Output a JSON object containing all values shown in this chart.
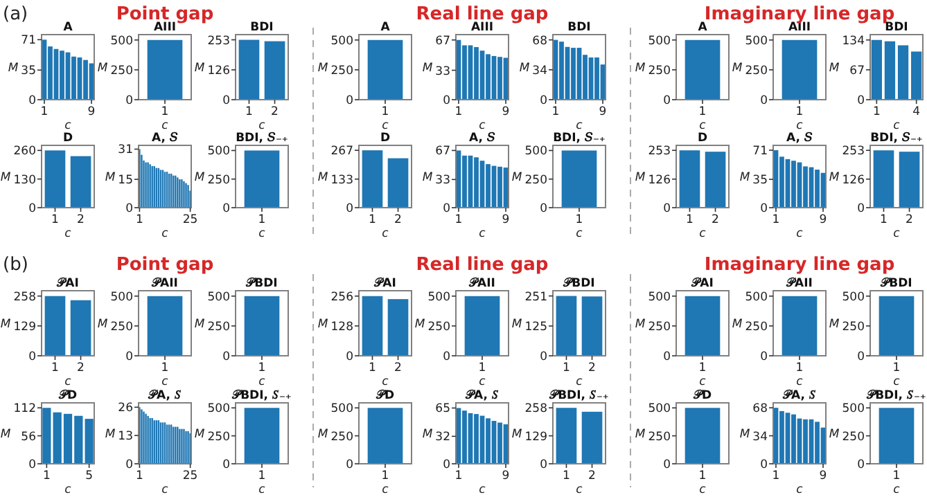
{
  "chart_data": [
    {
      "type": "bar",
      "title": "A",
      "xlabel": "c",
      "ylabel": "M",
      "annotations": [
        "(a)"
      ],
      "categories": [
        "1",
        null,
        null,
        null,
        null,
        null,
        null,
        null,
        "9"
      ],
      "values": [
        71,
        63,
        60,
        58,
        56,
        51,
        50,
        47,
        43
      ],
      "color": "#1f77b4",
      "ylim": [
        0,
        77
      ],
      "yticks": [
        0,
        35,
        71
      ]
    },
    {
      "type": "bar",
      "title": "AIII",
      "xlabel": "c",
      "ylabel": "M",
      "annotations": [
        "Point gap"
      ],
      "categories": [
        "1"
      ],
      "values": [
        500
      ],
      "color": "#1f77b4",
      "ylim": [
        0,
        545
      ],
      "yticks": [
        0,
        250,
        500
      ]
    },
    {
      "type": "bar",
      "title": "BDI",
      "xlabel": "c",
      "ylabel": "M",
      "categories": [
        "1",
        "2"
      ],
      "values": [
        253,
        247
      ],
      "color": "#1f77b4",
      "ylim": [
        0,
        275
      ],
      "yticks": [
        0,
        126,
        253
      ]
    },
    {
      "type": "bar",
      "title": "A",
      "xlabel": "c",
      "ylabel": "M",
      "categories": [
        "1"
      ],
      "values": [
        500
      ],
      "color": "#1f77b4",
      "ylim": [
        0,
        545
      ],
      "yticks": [
        0,
        250,
        500
      ]
    },
    {
      "type": "bar",
      "title": "AIII",
      "xlabel": "c",
      "ylabel": "M",
      "annotations": [
        "Real line gap"
      ],
      "categories": [
        "1",
        null,
        null,
        null,
        null,
        null,
        null,
        null,
        "9"
      ],
      "values": [
        67,
        61,
        61,
        59,
        55,
        51,
        49,
        48,
        47
      ],
      "color": "#1f77b4",
      "ylim": [
        0,
        73
      ],
      "yticks": [
        0,
        33,
        67
      ]
    },
    {
      "type": "bar",
      "title": "BDI",
      "xlabel": "c",
      "ylabel": "M",
      "categories": [
        "1",
        null,
        null,
        null,
        null,
        null,
        null,
        null,
        "9"
      ],
      "values": [
        68,
        66,
        60,
        59,
        59,
        51,
        48,
        48,
        40
      ],
      "color": "#1f77b4",
      "ylim": [
        0,
        74
      ],
      "yticks": [
        0,
        34,
        68
      ]
    },
    {
      "type": "bar",
      "title": "A",
      "xlabel": "c",
      "ylabel": "M",
      "categories": [
        "1"
      ],
      "values": [
        500
      ],
      "color": "#1f77b4",
      "ylim": [
        0,
        545
      ],
      "yticks": [
        0,
        250,
        500
      ]
    },
    {
      "type": "bar",
      "title": "AIII",
      "xlabel": "c",
      "ylabel": "M",
      "annotations": [
        "Imaginary line gap"
      ],
      "categories": [
        "1"
      ],
      "values": [
        500
      ],
      "color": "#1f77b4",
      "ylim": [
        0,
        545
      ],
      "yticks": [
        0,
        250,
        500
      ]
    },
    {
      "type": "bar",
      "title": "BDI",
      "xlabel": "c",
      "ylabel": "M",
      "categories": [
        "1",
        null,
        null,
        "4"
      ],
      "values": [
        134,
        131,
        122,
        108
      ],
      "color": "#1f77b4",
      "ylim": [
        0,
        146
      ],
      "yticks": [
        0,
        67,
        134
      ]
    },
    {
      "type": "bar",
      "title": "D",
      "xlabel": "c",
      "ylabel": "M",
      "categories": [
        "1",
        "2"
      ],
      "values": [
        260,
        234
      ],
      "color": "#1f77b4",
      "ylim": [
        0,
        283
      ],
      "yticks": [
        0,
        130,
        260
      ]
    },
    {
      "type": "bar",
      "title": "A, 𝑆",
      "xlabel": "c",
      "ylabel": "M",
      "categories": [
        "1",
        null,
        null,
        null,
        null,
        null,
        null,
        null,
        null,
        null,
        null,
        null,
        null,
        null,
        null,
        null,
        null,
        null,
        null,
        null,
        null,
        null,
        null,
        null,
        "25"
      ],
      "values": [
        31,
        28,
        25,
        24,
        24,
        23,
        22,
        22,
        21,
        21,
        20,
        20,
        19,
        19,
        18,
        18,
        17,
        17,
        16,
        15,
        15,
        14,
        13,
        12,
        9
      ],
      "color": "#1f77b4",
      "ylim": [
        0,
        33
      ],
      "yticks": [
        0,
        15,
        31
      ]
    },
    {
      "type": "bar",
      "title": "BDI, 𝑆₋₊",
      "xlabel": "c",
      "ylabel": "M",
      "categories": [
        "1"
      ],
      "values": [
        500
      ],
      "color": "#1f77b4",
      "ylim": [
        0,
        545
      ],
      "yticks": [
        0,
        250,
        500
      ]
    },
    {
      "type": "bar",
      "title": "D",
      "xlabel": "c",
      "ylabel": "M",
      "categories": [
        "1",
        "2"
      ],
      "values": [
        267,
        230
      ],
      "color": "#1f77b4",
      "ylim": [
        0,
        290
      ],
      "yticks": [
        0,
        133,
        267
      ]
    },
    {
      "type": "bar",
      "title": "A, 𝑆",
      "xlabel": "c",
      "ylabel": "M",
      "categories": [
        "1",
        null,
        null,
        null,
        null,
        null,
        null,
        null,
        "9"
      ],
      "values": [
        67,
        61,
        61,
        59,
        55,
        51,
        49,
        48,
        47
      ],
      "color": "#1f77b4",
      "ylim": [
        0,
        73
      ],
      "yticks": [
        0,
        33,
        67
      ]
    },
    {
      "type": "bar",
      "title": "BDI, 𝑆₋₊",
      "xlabel": "c",
      "ylabel": "M",
      "categories": [
        "1"
      ],
      "values": [
        500
      ],
      "color": "#1f77b4",
      "ylim": [
        0,
        545
      ],
      "yticks": [
        0,
        250,
        500
      ]
    },
    {
      "type": "bar",
      "title": "D",
      "xlabel": "c",
      "ylabel": "M",
      "categories": [
        "1",
        "2"
      ],
      "values": [
        253,
        247
      ],
      "color": "#1f77b4",
      "ylim": [
        0,
        275
      ],
      "yticks": [
        0,
        126,
        253
      ]
    },
    {
      "type": "bar",
      "title": "A, 𝑆",
      "xlabel": "c",
      "ylabel": "M",
      "categories": [
        "1",
        null,
        null,
        null,
        null,
        null,
        null,
        null,
        "9"
      ],
      "values": [
        71,
        63,
        60,
        58,
        56,
        51,
        50,
        47,
        43
      ],
      "color": "#1f77b4",
      "ylim": [
        0,
        77
      ],
      "yticks": [
        0,
        35,
        71
      ]
    },
    {
      "type": "bar",
      "title": "BDI, 𝑆₋₊",
      "xlabel": "c",
      "ylabel": "M",
      "categories": [
        "1",
        "2"
      ],
      "values": [
        253,
        247
      ],
      "color": "#1f77b4",
      "ylim": [
        0,
        275
      ],
      "yticks": [
        0,
        126,
        253
      ]
    },
    {
      "type": "bar",
      "title": "𝒫AI",
      "xlabel": "c",
      "ylabel": "M",
      "annotations": [
        "(b)"
      ],
      "categories": [
        "1",
        "2"
      ],
      "values": [
        258,
        240
      ],
      "color": "#1f77b4",
      "ylim": [
        0,
        281
      ],
      "yticks": [
        0,
        129,
        258
      ]
    },
    {
      "type": "bar",
      "title": "𝒫AII",
      "xlabel": "c",
      "ylabel": "M",
      "annotations": [
        "Point gap"
      ],
      "categories": [
        "1"
      ],
      "values": [
        500
      ],
      "color": "#1f77b4",
      "ylim": [
        0,
        545
      ],
      "yticks": [
        0,
        250,
        500
      ]
    },
    {
      "type": "bar",
      "title": "𝒫BDI",
      "xlabel": "c",
      "ylabel": "M",
      "categories": [
        "1"
      ],
      "values": [
        500
      ],
      "color": "#1f77b4",
      "ylim": [
        0,
        545
      ],
      "yticks": [
        0,
        250,
        500
      ]
    },
    {
      "type": "bar",
      "title": "𝒫AI",
      "xlabel": "c",
      "ylabel": "M",
      "categories": [
        "1",
        "2"
      ],
      "values": [
        256,
        243
      ],
      "color": "#1f77b4",
      "ylim": [
        0,
        279
      ],
      "yticks": [
        0,
        128,
        256
      ]
    },
    {
      "type": "bar",
      "title": "𝒫AII",
      "xlabel": "c",
      "ylabel": "M",
      "annotations": [
        "Real line gap"
      ],
      "categories": [
        "1"
      ],
      "values": [
        500
      ],
      "color": "#1f77b4",
      "ylim": [
        0,
        545
      ],
      "yticks": [
        0,
        250,
        500
      ]
    },
    {
      "type": "bar",
      "title": "𝒫BDI",
      "xlabel": "c",
      "ylabel": "M",
      "categories": [
        "1",
        "2"
      ],
      "values": [
        251,
        249
      ],
      "color": "#1f77b4",
      "ylim": [
        0,
        273
      ],
      "yticks": [
        0,
        125,
        251
      ]
    },
    {
      "type": "bar",
      "title": "𝒫AI",
      "xlabel": "c",
      "ylabel": "M",
      "categories": [
        "1"
      ],
      "values": [
        500
      ],
      "color": "#1f77b4",
      "ylim": [
        0,
        545
      ],
      "yticks": [
        0,
        250,
        500
      ]
    },
    {
      "type": "bar",
      "title": "𝒫AII",
      "xlabel": "c",
      "ylabel": "M",
      "annotations": [
        "Imaginary line gap"
      ],
      "categories": [
        "1"
      ],
      "values": [
        500
      ],
      "color": "#1f77b4",
      "ylim": [
        0,
        545
      ],
      "yticks": [
        0,
        250,
        500
      ]
    },
    {
      "type": "bar",
      "title": "𝒫BDI",
      "xlabel": "c",
      "ylabel": "M",
      "categories": [
        "1"
      ],
      "values": [
        500
      ],
      "color": "#1f77b4",
      "ylim": [
        0,
        545
      ],
      "yticks": [
        0,
        250,
        500
      ]
    },
    {
      "type": "bar",
      "title": "𝒫D",
      "xlabel": "c",
      "ylabel": "M",
      "categories": [
        "1",
        null,
        null,
        null,
        "5"
      ],
      "values": [
        112,
        103,
        100,
        96,
        90
      ],
      "color": "#1f77b4",
      "ylim": [
        0,
        122
      ],
      "yticks": [
        0,
        56,
        112
      ]
    },
    {
      "type": "bar",
      "title": "𝒫A, 𝑆",
      "xlabel": "c",
      "ylabel": "M",
      "categories": [
        "1",
        null,
        null,
        null,
        null,
        null,
        null,
        null,
        null,
        null,
        null,
        null,
        null,
        null,
        null,
        null,
        null,
        null,
        null,
        null,
        null,
        null,
        null,
        null,
        "25"
      ],
      "values": [
        26,
        25,
        24,
        23,
        22,
        21,
        21,
        20,
        20,
        20,
        19,
        19,
        19,
        18,
        18,
        18,
        17,
        17,
        17,
        16,
        16,
        16,
        15,
        15,
        14
      ],
      "color": "#1f77b4",
      "ylim": [
        0,
        28
      ],
      "yticks": [
        0,
        13,
        26
      ]
    },
    {
      "type": "bar",
      "title": "𝒫BDI, 𝑆₋₊",
      "xlabel": "c",
      "ylabel": "M",
      "categories": [
        "1"
      ],
      "values": [
        500
      ],
      "color": "#1f77b4",
      "ylim": [
        0,
        545
      ],
      "yticks": [
        0,
        250,
        500
      ]
    },
    {
      "type": "bar",
      "title": "𝒫D",
      "xlabel": "c",
      "ylabel": "M",
      "categories": [
        "1"
      ],
      "values": [
        500
      ],
      "color": "#1f77b4",
      "ylim": [
        0,
        545
      ],
      "yticks": [
        0,
        250,
        500
      ]
    },
    {
      "type": "bar",
      "title": "𝒫A, 𝑆",
      "xlabel": "c",
      "ylabel": "M",
      "categories": [
        "1",
        null,
        null,
        null,
        null,
        null,
        null,
        null,
        "9"
      ],
      "values": [
        65,
        62,
        59,
        58,
        56,
        53,
        50,
        48,
        46
      ],
      "color": "#1f77b4",
      "ylim": [
        0,
        71
      ],
      "yticks": [
        0,
        32,
        65
      ]
    },
    {
      "type": "bar",
      "title": "𝒫BDI, 𝑆₋₊",
      "xlabel": "c",
      "ylabel": "M",
      "categories": [
        "1",
        "2"
      ],
      "values": [
        258,
        240
      ],
      "color": "#1f77b4",
      "ylim": [
        0,
        281
      ],
      "yticks": [
        0,
        129,
        258
      ]
    },
    {
      "type": "bar",
      "title": "𝒫D",
      "xlabel": "c",
      "ylabel": "M",
      "categories": [
        "1"
      ],
      "values": [
        500
      ],
      "color": "#1f77b4",
      "ylim": [
        0,
        545
      ],
      "yticks": [
        0,
        250,
        500
      ]
    },
    {
      "type": "bar",
      "title": "𝒫A, 𝑆",
      "xlabel": "c",
      "ylabel": "M",
      "categories": [
        "1",
        null,
        null,
        null,
        null,
        null,
        null,
        null,
        "9"
      ],
      "values": [
        68,
        64,
        62,
        60,
        55,
        54,
        54,
        51,
        44
      ],
      "color": "#1f77b4",
      "ylim": [
        0,
        74
      ],
      "yticks": [
        0,
        34,
        68
      ]
    },
    {
      "type": "bar",
      "title": "𝒫BDI, 𝑆₋₊",
      "xlabel": "c",
      "ylabel": "M",
      "categories": [
        "1"
      ],
      "values": [
        500
      ],
      "color": "#1f77b4",
      "ylim": [
        0,
        545
      ],
      "yticks": [
        0,
        250,
        500
      ]
    }
  ]
}
